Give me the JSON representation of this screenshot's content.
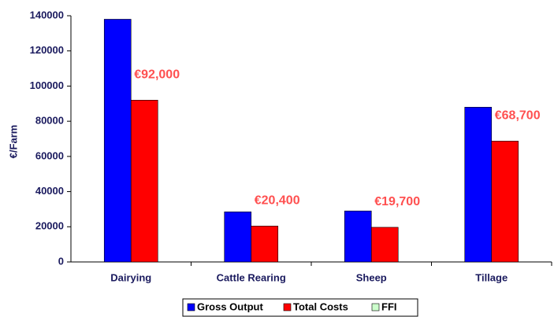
{
  "chart_data": {
    "type": "bar",
    "ylabel": "€/Farm",
    "categories": [
      "Dairying",
      "Cattle Rearing",
      "Sheep",
      "Tillage"
    ],
    "series": [
      {
        "name": "Gross Output",
        "color": "#0000ff",
        "values": [
          138000,
          28500,
          29000,
          88000
        ]
      },
      {
        "name": "Total Costs",
        "color": "#ff0000",
        "values": [
          92000,
          20400,
          19700,
          68700
        ],
        "value_labels": [
          "€92,000",
          "€20,400",
          "€19,700",
          "€68,700"
        ],
        "label_color": "#ff5050"
      },
      {
        "name": "FFI",
        "color": "#ccffcc",
        "values": [
          null,
          null,
          null,
          null
        ]
      }
    ],
    "ylim": [
      0,
      140000
    ],
    "yticks": [
      0,
      20000,
      40000,
      60000,
      80000,
      100000,
      120000,
      140000
    ],
    "legend": "bottom"
  }
}
